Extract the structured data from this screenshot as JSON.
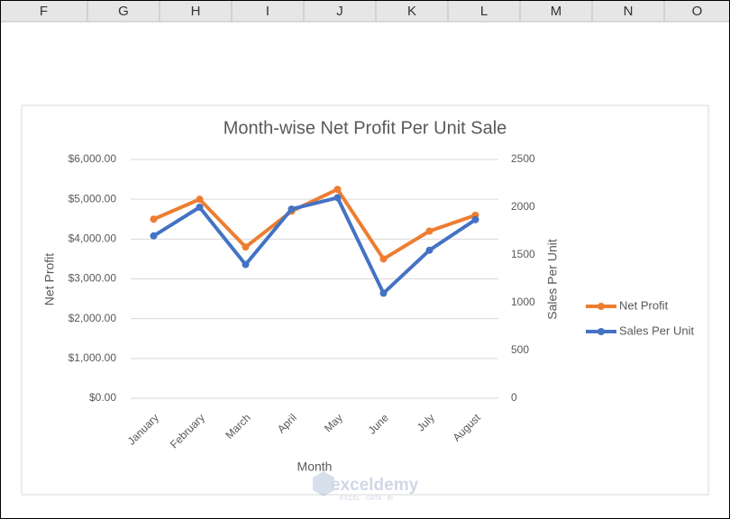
{
  "spreadsheet": {
    "columns": [
      "F",
      "G",
      "H",
      "I",
      "J",
      "K",
      "L",
      "M",
      "N",
      "O"
    ]
  },
  "watermark": {
    "brand": "exceldemy",
    "tagline": "EXCEL · DATA · BI"
  },
  "chart_data": {
    "type": "line",
    "title": "Month-wise Net Profit Per Unit Sale",
    "x_label": "Month",
    "y_label": "Net Profit",
    "y2_label": "Sales Per Unit",
    "categories": [
      "January",
      "February",
      "March",
      "April",
      "May",
      "June",
      "July",
      "August"
    ],
    "series": [
      {
        "name": "Net Profit",
        "color": "#ed7d31",
        "values": [
          4500,
          5000,
          3800,
          4700,
          5250,
          3500,
          4200,
          4600
        ]
      },
      {
        "name": "Sales Per Unit",
        "color": "#4472c4",
        "axis": "y2",
        "values": [
          1700,
          2000,
          1400,
          1980,
          2100,
          1100,
          1550,
          1870
        ]
      }
    ],
    "ylim": [
      0,
      6000
    ],
    "yticks": [
      {
        "value": 0,
        "label": "$0.00"
      },
      {
        "value": 1000,
        "label": "$1,000.00"
      },
      {
        "value": 2000,
        "label": "$2,000.00"
      },
      {
        "value": 3000,
        "label": "$3,000.00"
      },
      {
        "value": 4000,
        "label": "$4,000.00"
      },
      {
        "value": 5000,
        "label": "$5,000.00"
      },
      {
        "value": 6000,
        "label": "$6,000.00"
      }
    ],
    "y2lim": [
      0,
      2500
    ],
    "y2ticks": [
      0,
      500,
      1000,
      1500,
      2000,
      2500
    ],
    "grid": true,
    "legend": "right"
  }
}
